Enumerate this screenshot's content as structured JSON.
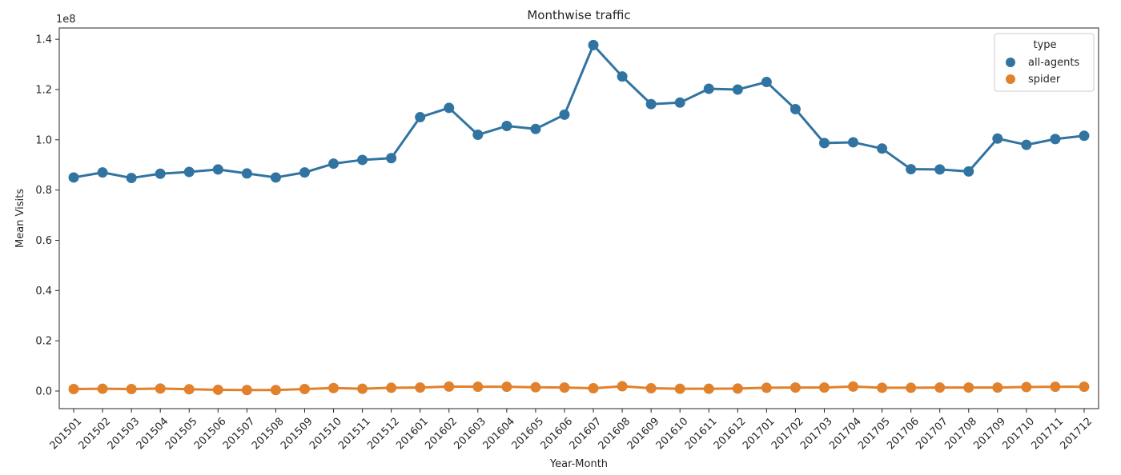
{
  "chart_data": {
    "type": "line",
    "title": "Monthwise traffic",
    "xlabel": "Year-Month",
    "ylabel": "Mean Visits",
    "y_scale_label": "1e8",
    "y_tick_labels": [
      "0.0",
      "0.2",
      "0.4",
      "0.6",
      "0.8",
      "1.0",
      "1.2",
      "1.4"
    ],
    "y_ticks": [
      0.0,
      0.2,
      0.4,
      0.6,
      0.8,
      1.0,
      1.2,
      1.4
    ],
    "ylim": [
      -0.07,
      1.445
    ],
    "categories": [
      "201501",
      "201502",
      "201503",
      "201504",
      "201505",
      "201506",
      "201507",
      "201508",
      "201509",
      "201510",
      "201511",
      "201512",
      "201601",
      "201602",
      "201603",
      "201604",
      "201605",
      "201606",
      "201607",
      "201608",
      "201609",
      "201610",
      "201611",
      "201612",
      "201701",
      "201702",
      "201703",
      "201704",
      "201705",
      "201706",
      "201707",
      "201708",
      "201709",
      "201710",
      "201711",
      "201712"
    ],
    "legend": {
      "title": "type",
      "placement": "top-right"
    },
    "series": [
      {
        "name": "all-agents",
        "color": "#3274a1",
        "values": [
          0.85,
          0.87,
          0.848,
          0.865,
          0.872,
          0.882,
          0.866,
          0.85,
          0.87,
          0.905,
          0.92,
          0.927,
          1.09,
          1.127,
          1.02,
          1.055,
          1.043,
          1.1,
          1.377,
          1.252,
          1.142,
          1.148,
          1.203,
          1.2,
          1.23,
          1.122,
          0.987,
          0.99,
          0.965,
          0.883,
          0.882,
          0.874,
          1.005,
          0.98,
          1.003,
          1.016
        ]
      },
      {
        "name": "spider",
        "color": "#e1812c",
        "values": [
          0.008,
          0.009,
          0.008,
          0.01,
          0.007,
          0.005,
          0.004,
          0.004,
          0.008,
          0.012,
          0.009,
          0.013,
          0.014,
          0.018,
          0.017,
          0.017,
          0.015,
          0.014,
          0.011,
          0.019,
          0.011,
          0.009,
          0.009,
          0.01,
          0.013,
          0.014,
          0.014,
          0.018,
          0.013,
          0.013,
          0.014,
          0.014,
          0.014,
          0.016,
          0.017,
          0.017
        ]
      }
    ]
  }
}
